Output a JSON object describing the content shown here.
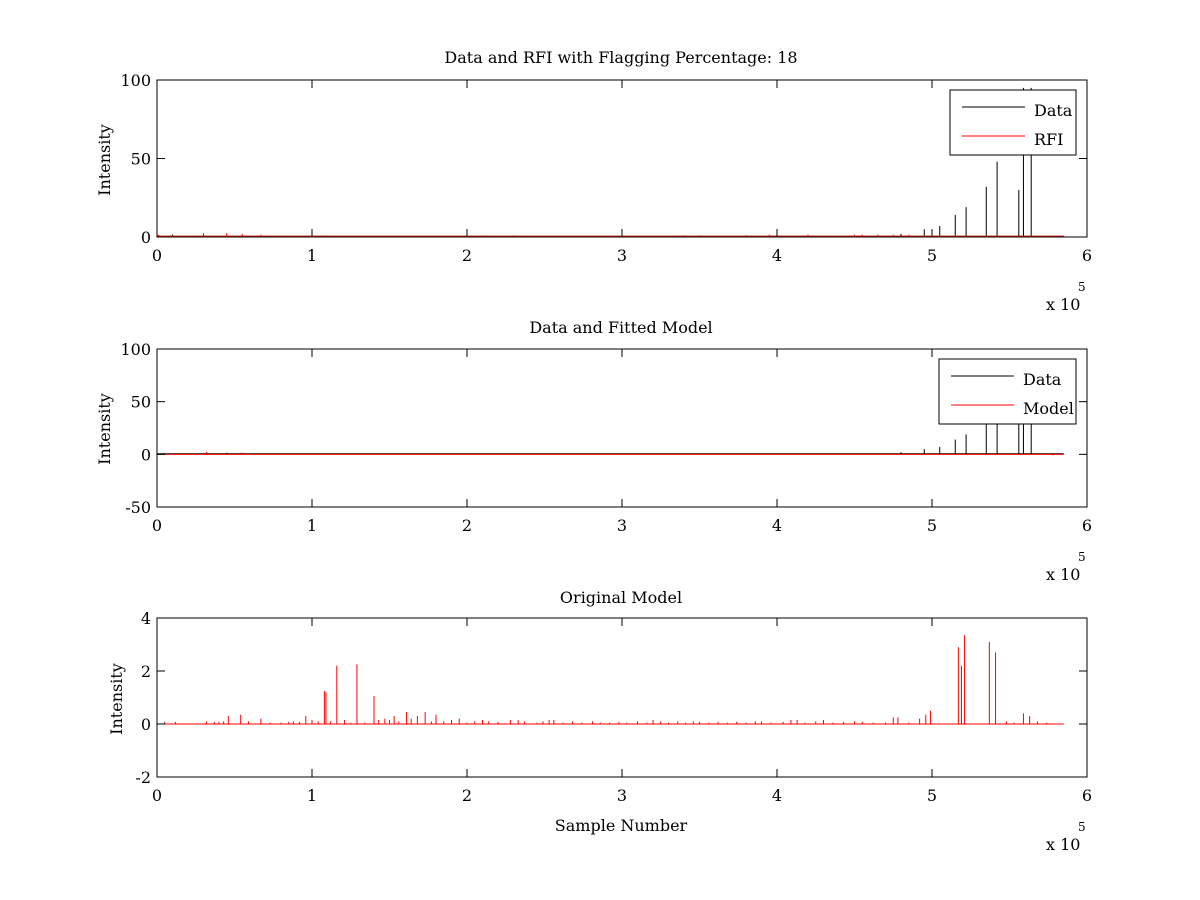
{
  "colors": {
    "data": "#000000",
    "rfi": "#ff0000",
    "model": "#ff0000",
    "axes": "#000000",
    "background": "#ffffff"
  },
  "chart_data": [
    {
      "type": "line",
      "title": "Data and RFI with Flagging Percentage: 18",
      "xlabel": "",
      "ylabel": "Intensity",
      "xlim": [
        0,
        600000
      ],
      "ylim": [
        0,
        100
      ],
      "xticks": [
        0,
        1,
        2,
        3,
        4,
        5,
        6
      ],
      "yticks": [
        0,
        50,
        100
      ],
      "x_multiplier": {
        "base": "x 10",
        "exponent": "5"
      },
      "legend": {
        "placement": "top-right",
        "entries": [
          "Data",
          "RFI"
        ]
      },
      "grid": false,
      "series": [
        {
          "name": "Data",
          "color": "#000000",
          "baseline": 0.5,
          "spikes": [
            [
              0,
              2
            ],
            [
              10000,
              1.5
            ],
            [
              110000,
              0.8
            ],
            [
              210000,
              0.8
            ],
            [
              380000,
              1
            ],
            [
              395000,
              1
            ],
            [
              480000,
              2
            ],
            [
              495000,
              5
            ],
            [
              505000,
              7
            ],
            [
              515000,
              14
            ],
            [
              522000,
              19
            ],
            [
              535000,
              32
            ],
            [
              542000,
              48
            ],
            [
              556000,
              30
            ],
            [
              559000,
              95
            ],
            [
              564000,
              95
            ]
          ]
        },
        {
          "name": "RFI",
          "color": "#ff0000",
          "baseline": 0.5,
          "spikes": [
            [
              1000,
              1.5
            ],
            [
              30000,
              2.5
            ],
            [
              45000,
              2.5
            ],
            [
              55000,
              2
            ],
            [
              67000,
              1.5
            ],
            [
              230000,
              1
            ],
            [
              340000,
              1
            ],
            [
              350000,
              1
            ],
            [
              395000,
              1.5
            ],
            [
              420000,
              1.5
            ],
            [
              450000,
              1.5
            ],
            [
              455000,
              1.5
            ],
            [
              465000,
              1.5
            ],
            [
              475000,
              1.5
            ],
            [
              485000,
              1.5
            ]
          ]
        }
      ]
    },
    {
      "type": "line",
      "title": "Data and Fitted Model",
      "xlabel": "",
      "ylabel": "Intensity",
      "xlim": [
        0,
        600000
      ],
      "ylim": [
        -50,
        100
      ],
      "xticks": [
        0,
        1,
        2,
        3,
        4,
        5,
        6
      ],
      "yticks": [
        -50,
        0,
        50,
        100
      ],
      "x_multiplier": {
        "base": "x 10",
        "exponent": "5"
      },
      "legend": {
        "placement": "top-right",
        "entries": [
          "Data",
          "Model"
        ]
      },
      "grid": false,
      "series": [
        {
          "name": "Data",
          "color": "#000000",
          "baseline": 0.5,
          "spikes": [
            [
              32000,
              2
            ],
            [
              45000,
              1.5
            ],
            [
              480000,
              2
            ],
            [
              495000,
              5
            ],
            [
              505000,
              7
            ],
            [
              515000,
              14
            ],
            [
              522000,
              19
            ],
            [
              535000,
              30
            ],
            [
              542000,
              45
            ],
            [
              556000,
              30
            ],
            [
              559000,
              90
            ],
            [
              564000,
              90
            ]
          ]
        },
        {
          "name": "Model",
          "color": "#ff0000",
          "baseline": 0,
          "spikes": [
            [
              32000,
              2
            ],
            [
              54000,
              1.5
            ],
            [
              578000,
              -1
            ]
          ]
        }
      ]
    },
    {
      "type": "line",
      "title": "Original Model",
      "xlabel": "Sample Number",
      "ylabel": "Intensity",
      "xlim": [
        0,
        600000
      ],
      "ylim": [
        -2,
        4
      ],
      "xticks": [
        0,
        1,
        2,
        3,
        4,
        5,
        6
      ],
      "yticks": [
        -2,
        0,
        2,
        4
      ],
      "x_multiplier": {
        "base": "x 10",
        "exponent": "5"
      },
      "legend": null,
      "grid": false,
      "series": [
        {
          "name": "",
          "color": "#ff0000",
          "baseline": 0,
          "spikes": [
            [
              5000,
              0.08
            ],
            [
              12000,
              0.08
            ],
            [
              32000,
              0.1
            ],
            [
              37000,
              0.08
            ],
            [
              40000,
              0.08
            ],
            [
              43000,
              0.1
            ],
            [
              46000,
              0.3
            ],
            [
              54000,
              0.35
            ],
            [
              59000,
              0.1
            ],
            [
              67000,
              0.2
            ],
            [
              73000,
              0.05
            ],
            [
              80000,
              0.05
            ],
            [
              85000,
              0.08
            ],
            [
              88000,
              0.1
            ],
            [
              92000,
              0.08
            ],
            [
              96000,
              0.3
            ],
            [
              100000,
              0.15
            ],
            [
              104000,
              0.1
            ],
            [
              108000,
              1.25
            ],
            [
              109000,
              1.2
            ],
            [
              112000,
              0.1
            ],
            [
              116000,
              2.2
            ],
            [
              121000,
              0.15
            ],
            [
              125000,
              0.05
            ],
            [
              129000,
              2.25
            ],
            [
              134000,
              0.05
            ],
            [
              140000,
              1.05
            ],
            [
              143000,
              0.15
            ],
            [
              147000,
              0.2
            ],
            [
              150000,
              0.15
            ],
            [
              153000,
              0.3
            ],
            [
              156000,
              0.1
            ],
            [
              161000,
              0.45
            ],
            [
              164000,
              0.2
            ],
            [
              168000,
              0.3
            ],
            [
              173000,
              0.45
            ],
            [
              177000,
              0.1
            ],
            [
              180000,
              0.35
            ],
            [
              185000,
              0.1
            ],
            [
              190000,
              0.15
            ],
            [
              195000,
              0.2
            ],
            [
              200000,
              0.05
            ],
            [
              205000,
              0.1
            ],
            [
              210000,
              0.15
            ],
            [
              214000,
              0.1
            ],
            [
              220000,
              0.08
            ],
            [
              228000,
              0.15
            ],
            [
              233000,
              0.15
            ],
            [
              237000,
              0.1
            ],
            [
              245000,
              0.05
            ],
            [
              249000,
              0.1
            ],
            [
              253000,
              0.15
            ],
            [
              256000,
              0.15
            ],
            [
              262000,
              0.05
            ],
            [
              268000,
              0.1
            ],
            [
              274000,
              0.05
            ],
            [
              281000,
              0.1
            ],
            [
              286000,
              0.05
            ],
            [
              292000,
              0.05
            ],
            [
              298000,
              0.08
            ],
            [
              303000,
              0.05
            ],
            [
              310000,
              0.1
            ],
            [
              316000,
              0.05
            ],
            [
              320000,
              0.15
            ],
            [
              325000,
              0.1
            ],
            [
              330000,
              0.05
            ],
            [
              336000,
              0.1
            ],
            [
              341000,
              0.05
            ],
            [
              346000,
              0.1
            ],
            [
              350000,
              0.08
            ],
            [
              356000,
              0.05
            ],
            [
              362000,
              0.08
            ],
            [
              368000,
              0.05
            ],
            [
              374000,
              0.08
            ],
            [
              380000,
              0.05
            ],
            [
              386000,
              0.1
            ],
            [
              390000,
              0.1
            ],
            [
              396000,
              0.05
            ],
            [
              404000,
              0.08
            ],
            [
              409000,
              0.15
            ],
            [
              413000,
              0.15
            ],
            [
              418000,
              0.05
            ],
            [
              425000,
              0.1
            ],
            [
              430000,
              0.15
            ],
            [
              436000,
              0.05
            ],
            [
              443000,
              0.08
            ],
            [
              450000,
              0.1
            ],
            [
              455000,
              0.08
            ],
            [
              462000,
              0.05
            ],
            [
              470000,
              0.05
            ],
            [
              475000,
              0.25
            ],
            [
              478000,
              0.25
            ],
            [
              485000,
              0.05
            ],
            [
              492000,
              0.2
            ],
            [
              496000,
              0.35
            ],
            [
              499000,
              0.5
            ],
            [
              517000,
              2.9
            ],
            [
              519000,
              2.2
            ],
            [
              521000,
              3.35
            ],
            [
              537000,
              3.1
            ],
            [
              541000,
              2.7
            ],
            [
              548000,
              0.1
            ],
            [
              553000,
              0.05
            ],
            [
              559000,
              0.4
            ],
            [
              563000,
              0.3
            ],
            [
              568000,
              0.1
            ],
            [
              574000,
              0.05
            ]
          ]
        }
      ]
    }
  ]
}
